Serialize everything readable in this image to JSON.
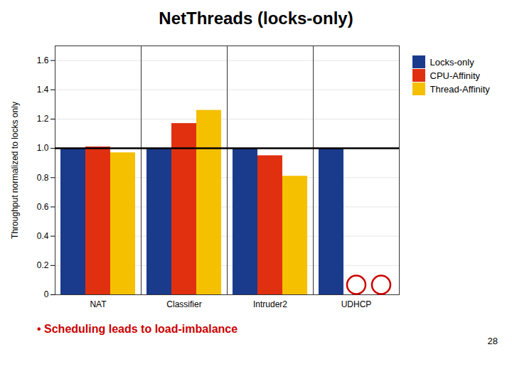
{
  "chart_data": {
    "type": "bar",
    "title": "NetThreads (locks-only)",
    "ylabel": "Throughput normalized to locks only",
    "categories": [
      "NAT",
      "Classifier",
      "Intruder2",
      "UDHCP"
    ],
    "series": [
      {
        "name": "Locks-only",
        "color": "#1a3a8c",
        "values": [
          1.0,
          1.0,
          1.0,
          1.0
        ]
      },
      {
        "name": "CPU-Affinity",
        "color": "#e03010",
        "values": [
          1.01,
          1.17,
          0.95,
          null
        ]
      },
      {
        "name": "Thread-Affinity",
        "color": "#f5c000",
        "values": [
          0.97,
          1.26,
          0.81,
          null
        ]
      }
    ],
    "reference_line": 1.0,
    "ylim": [
      0,
      1.7
    ],
    "yticks": [
      0,
      0.2,
      0.4,
      0.6,
      0.8,
      {
        "value": 1.0,
        "label": "1.0"
      },
      1.2,
      1.4,
      1.6
    ],
    "grid": true,
    "legend": "right",
    "annotations": [
      {
        "text": "• Scheduling leads to load-imbalance",
        "color": "#cc0000"
      },
      {
        "text": "28"
      }
    ]
  }
}
